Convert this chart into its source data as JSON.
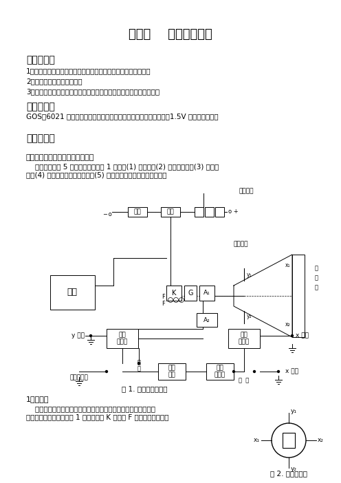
{
  "title": "实验二    示波器的使用",
  "sec1_head": "实验目的：",
  "sec1_items": [
    "1．了解示波器基本结构和工作原理，掌握示波器的调节和使用。",
    "2．观察各种电信号的波形。",
    "3．测量直流电压；测量交流信号峰值电压、周期、频率、和相位差。"
  ],
  "sec2_head": "实验仪器：",
  "sec2_body": "GOS－6021 示波器、信号发生器、十进制电阻箱、十进制电容箱、1.5V 干电池各一个。",
  "sec3_head": "实验原理：",
  "sub1_head": "一、示波器的结构及简单工作原理",
  "sub1_body1": "    示波器一般由 5 个部分组成，如图 1 所示：(1) 示波管；(2) 扫描发生器；(3) 同步电",
  "sub1_body2": "路；(4) 水平轴和垂直轴放大器；(5) 电源。下面分别加以简单说明。",
  "fig1_cap": "图 1. 示波器的原理图",
  "sub2_head": "1．示波管",
  "sub2_body1": "    示波管是示波器中的显示元件，在一个抽成真空的玻璃泡中，装",
  "sub2_body2": "有各种电极，其结构如图 1 所示。阴极 K 受灯丝 F 加热而发射电子，",
  "fig2_cap": "图 2. 示波器符号",
  "bg": "#ffffff",
  "fg": "#000000"
}
